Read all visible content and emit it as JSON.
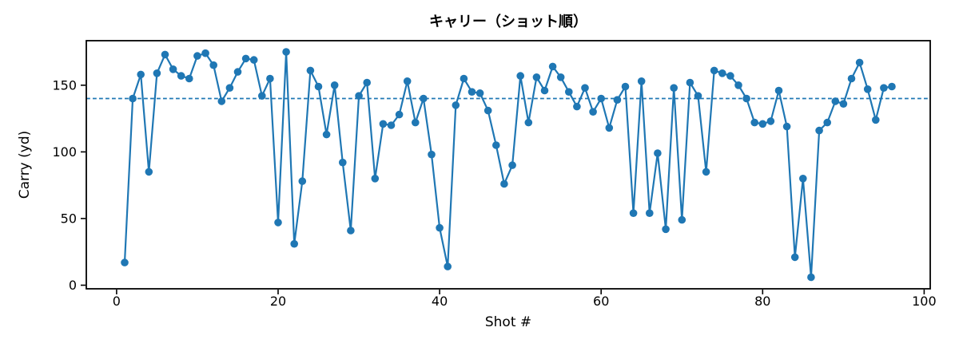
{
  "figure": {
    "background": "#ffffff",
    "accent_color": "#1f77b4"
  },
  "chart_data": {
    "type": "line",
    "title": "キャリー（ショット順）",
    "xlabel": "Shot #",
    "ylabel": "Carry (yd)",
    "legend": null,
    "grid": false,
    "marker": "circle",
    "line_color": "#1f77b4",
    "marker_color": "#1f77b4",
    "xlim": [
      -3.75,
      100.75
    ],
    "ylim": [
      -2.7,
      183.4
    ],
    "xticks": [
      0,
      20,
      40,
      60,
      80,
      100
    ],
    "yticks": [
      0,
      50,
      100,
      150
    ],
    "reference_line": {
      "value": 140,
      "style": "dashed",
      "color": "#1f77b4"
    },
    "x": [
      1,
      2,
      3,
      4,
      5,
      6,
      7,
      8,
      9,
      10,
      11,
      12,
      13,
      14,
      15,
      16,
      17,
      18,
      19,
      20,
      21,
      22,
      23,
      24,
      25,
      26,
      27,
      28,
      29,
      30,
      31,
      32,
      33,
      34,
      35,
      36,
      37,
      38,
      39,
      40,
      41,
      42,
      43,
      44,
      45,
      46,
      47,
      48,
      49,
      50,
      51,
      52,
      53,
      54,
      55,
      56,
      57,
      58,
      59,
      60,
      61,
      62,
      63,
      64,
      65,
      66,
      67,
      68,
      69,
      70,
      71,
      72,
      73,
      74,
      75,
      76,
      77,
      78,
      79,
      80,
      81,
      82,
      83,
      84,
      85,
      86,
      87,
      88,
      89,
      90,
      91,
      92,
      93,
      94,
      95,
      96
    ],
    "values": [
      17,
      140,
      158,
      85,
      159,
      173,
      162,
      157,
      155,
      172,
      174,
      165,
      138,
      148,
      160,
      170,
      169,
      142,
      155,
      47,
      175,
      31,
      78,
      161,
      149,
      113,
      150,
      92,
      41,
      142,
      152,
      80,
      121,
      120,
      128,
      153,
      122,
      140,
      98,
      43,
      14,
      135,
      155,
      145,
      144,
      131,
      105,
      76,
      90,
      157,
      122,
      156,
      146,
      164,
      156,
      145,
      134,
      148,
      130,
      140,
      118,
      139,
      149,
      54,
      153,
      54,
      99,
      42,
      148,
      49,
      152,
      142,
      85,
      161,
      159,
      157,
      150,
      140,
      122,
      121,
      123,
      146,
      119,
      21,
      80,
      6,
      116,
      122,
      138,
      136,
      155,
      167,
      147,
      124,
      148,
      149
    ]
  }
}
